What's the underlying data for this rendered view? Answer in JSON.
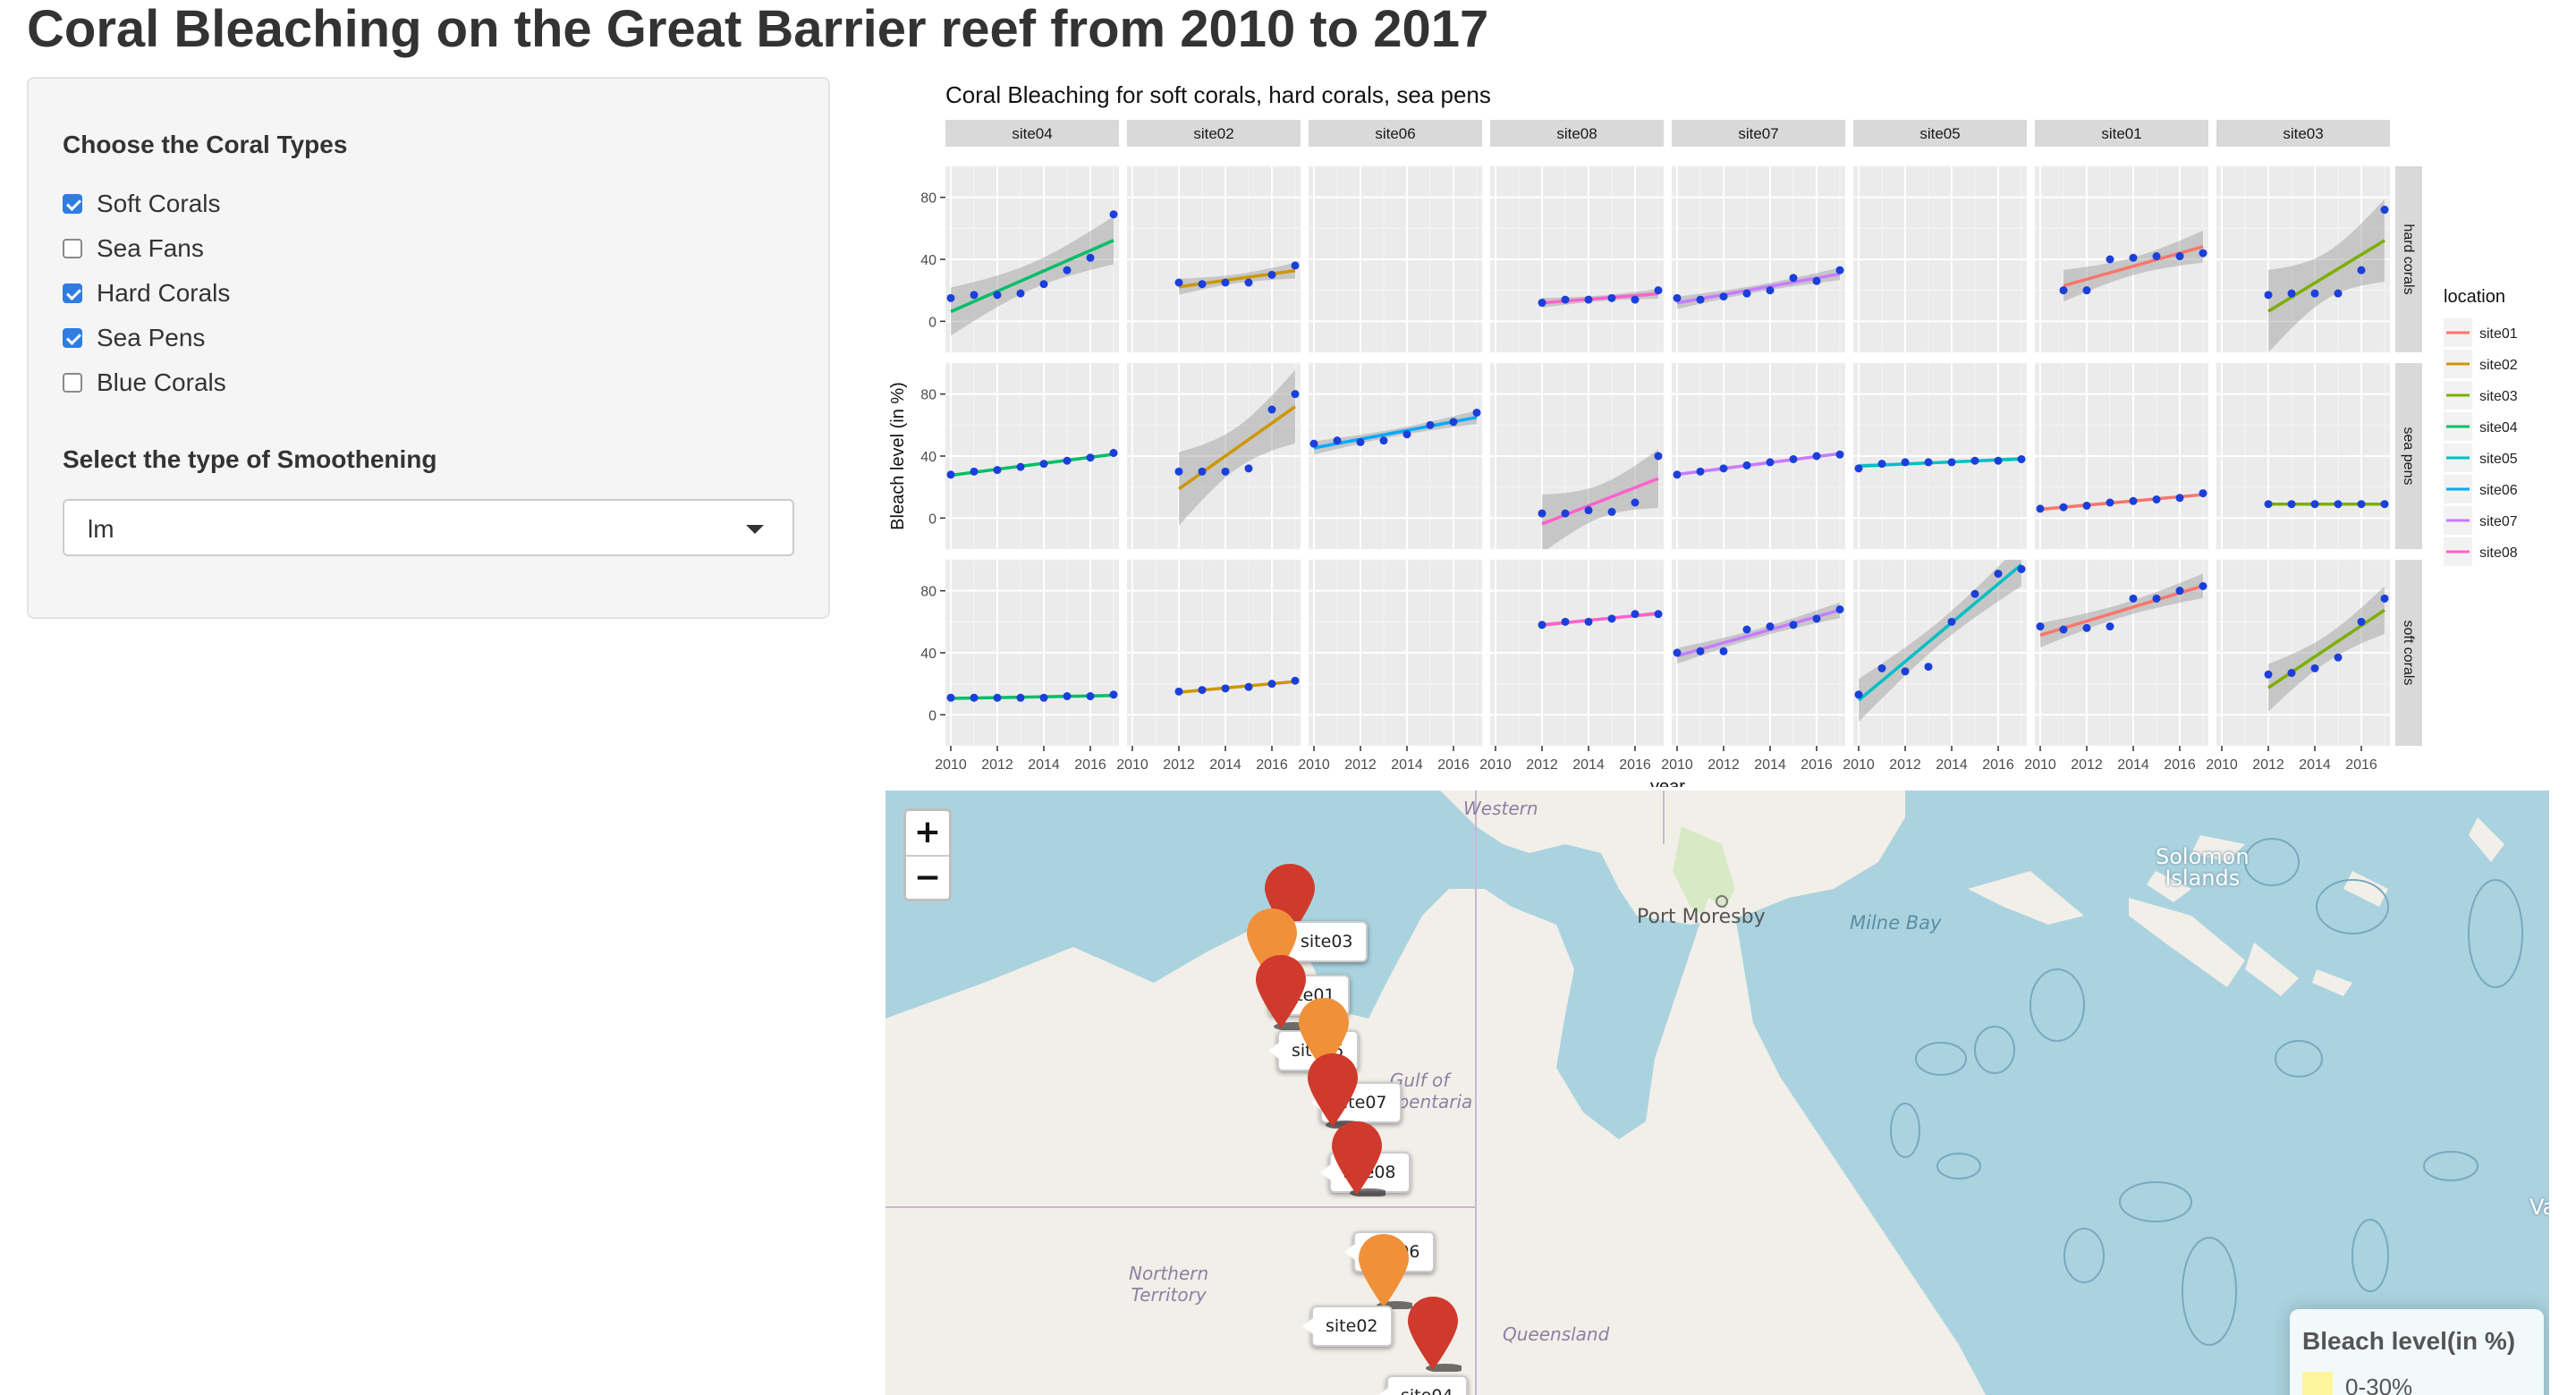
{
  "page": {
    "title": "Coral Bleaching on the Great Barrier reef from 2010 to 2017"
  },
  "sidebar": {
    "coral_types_label": "Choose the Coral Types",
    "checkboxes": [
      {
        "label": "Soft Corals",
        "checked": true
      },
      {
        "label": "Sea Fans",
        "checked": false
      },
      {
        "label": "Hard Corals",
        "checked": true
      },
      {
        "label": "Sea Pens",
        "checked": true
      },
      {
        "label": "Blue Corals",
        "checked": false
      }
    ],
    "smoothening_label": "Select the type of Smoothening",
    "smoothening_value": "lm"
  },
  "chart_data": {
    "type": "scatter",
    "title": "Coral Bleaching for soft corals, hard corals, sea pens",
    "xlabel": "year",
    "ylabel": "Bleach level (in %)",
    "xlim": [
      2010,
      2017
    ],
    "ylim": [
      -20,
      100
    ],
    "x_ticks": [
      "2010",
      "2012",
      "2014",
      "2016"
    ],
    "y_ticks": [
      "0",
      "40",
      "80"
    ],
    "grid": true,
    "legend_position": "right",
    "legend_title": "location",
    "smoothing": "lm",
    "columns": [
      "site04",
      "site02",
      "site06",
      "site08",
      "site07",
      "site05",
      "site01",
      "site03"
    ],
    "rows": [
      "hard corals",
      "sea pens",
      "soft corals"
    ],
    "colors": {
      "site01": "#f8766d",
      "site02": "#cd9600",
      "site03": "#7cae00",
      "site04": "#00be67",
      "site05": "#00bfc4",
      "site06": "#00a9ff",
      "site07": "#c77cff",
      "site08": "#ff61cc"
    },
    "point_color": "#1a3fdb",
    "legend": [
      "site01",
      "site02",
      "site03",
      "site04",
      "site05",
      "site06",
      "site07",
      "site08"
    ],
    "panels": [
      {
        "site": "site04",
        "type": "hard corals",
        "x": [
          2010,
          2011,
          2012,
          2013,
          2014,
          2015,
          2016,
          2017
        ],
        "y": [
          15,
          17,
          17,
          18,
          24,
          33,
          41,
          69
        ]
      },
      {
        "site": "site02",
        "type": "hard corals",
        "x": [
          2012,
          2013,
          2014,
          2015,
          2016,
          2017
        ],
        "y": [
          25,
          24,
          25,
          25,
          30,
          36
        ]
      },
      {
        "site": "site08",
        "type": "hard corals",
        "x": [
          2012,
          2013,
          2014,
          2015,
          2016,
          2017
        ],
        "y": [
          12,
          14,
          14,
          15,
          14,
          20
        ]
      },
      {
        "site": "site07",
        "type": "hard corals",
        "x": [
          2010,
          2011,
          2012,
          2013,
          2014,
          2015,
          2016,
          2017
        ],
        "y": [
          15,
          14,
          16,
          18,
          20,
          28,
          26,
          33
        ]
      },
      {
        "site": "site01",
        "type": "hard corals",
        "x": [
          2011,
          2012,
          2013,
          2014,
          2015,
          2016,
          2017
        ],
        "y": [
          20,
          20,
          40,
          41,
          42,
          42,
          44
        ]
      },
      {
        "site": "site03",
        "type": "hard corals",
        "x": [
          2012,
          2013,
          2014,
          2015,
          2016,
          2017
        ],
        "y": [
          17,
          18,
          18,
          18,
          33,
          72
        ]
      },
      {
        "site": "site04",
        "type": "sea pens",
        "x": [
          2010,
          2011,
          2012,
          2013,
          2014,
          2015,
          2016,
          2017
        ],
        "y": [
          28,
          30,
          31,
          33,
          35,
          37,
          39,
          42
        ]
      },
      {
        "site": "site02",
        "type": "sea pens",
        "x": [
          2012,
          2013,
          2014,
          2015,
          2016,
          2017
        ],
        "y": [
          30,
          30,
          30,
          32,
          70,
          80
        ]
      },
      {
        "site": "site06",
        "type": "sea pens",
        "x": [
          2010,
          2011,
          2012,
          2013,
          2014,
          2015,
          2016,
          2017
        ],
        "y": [
          48,
          50,
          49,
          50,
          54,
          60,
          62,
          68
        ]
      },
      {
        "site": "site08",
        "type": "sea pens",
        "x": [
          2012,
          2013,
          2014,
          2015,
          2016,
          2017
        ],
        "y": [
          3,
          3,
          5,
          4,
          10,
          40
        ]
      },
      {
        "site": "site07",
        "type": "sea pens",
        "x": [
          2010,
          2011,
          2012,
          2013,
          2014,
          2015,
          2016,
          2017
        ],
        "y": [
          28,
          30,
          32,
          34,
          36,
          38,
          40,
          41
        ]
      },
      {
        "site": "site05",
        "type": "sea pens",
        "x": [
          2010,
          2011,
          2012,
          2013,
          2014,
          2015,
          2016,
          2017
        ],
        "y": [
          32,
          35,
          36,
          36,
          36,
          37,
          37,
          38
        ]
      },
      {
        "site": "site01",
        "type": "sea pens",
        "x": [
          2010,
          2011,
          2012,
          2013,
          2014,
          2015,
          2016,
          2017
        ],
        "y": [
          6,
          7,
          8,
          10,
          11,
          12,
          13,
          16
        ]
      },
      {
        "site": "site03",
        "type": "sea pens",
        "x": [
          2012,
          2013,
          2014,
          2015,
          2016,
          2017
        ],
        "y": [
          9,
          9,
          9,
          9,
          9,
          9
        ]
      },
      {
        "site": "site04",
        "type": "soft corals",
        "x": [
          2010,
          2011,
          2012,
          2013,
          2014,
          2015,
          2016,
          2017
        ],
        "y": [
          11,
          11,
          11,
          11,
          11,
          12,
          12,
          13
        ]
      },
      {
        "site": "site02",
        "type": "soft corals",
        "x": [
          2012,
          2013,
          2014,
          2015,
          2016,
          2017
        ],
        "y": [
          15,
          16,
          17,
          18,
          20,
          22
        ]
      },
      {
        "site": "site08",
        "type": "soft corals",
        "x": [
          2012,
          2013,
          2014,
          2015,
          2016,
          2017
        ],
        "y": [
          58,
          60,
          60,
          62,
          65,
          65
        ]
      },
      {
        "site": "site07",
        "type": "soft corals",
        "x": [
          2010,
          2011,
          2012,
          2013,
          2014,
          2015,
          2016,
          2017
        ],
        "y": [
          40,
          41,
          41,
          55,
          57,
          58,
          62,
          68
        ]
      },
      {
        "site": "site05",
        "type": "soft corals",
        "x": [
          2010,
          2011,
          2012,
          2013,
          2014,
          2015,
          2016,
          2017
        ],
        "y": [
          13,
          30,
          28,
          31,
          60,
          78,
          91,
          94
        ]
      },
      {
        "site": "site01",
        "type": "soft corals",
        "x": [
          2010,
          2011,
          2012,
          2013,
          2014,
          2015,
          2016,
          2017
        ],
        "y": [
          57,
          55,
          56,
          57,
          75,
          75,
          80,
          83
        ]
      },
      {
        "site": "site03",
        "type": "soft corals",
        "x": [
          2012,
          2013,
          2014,
          2015,
          2016,
          2017
        ],
        "y": [
          26,
          27,
          30,
          37,
          60,
          75
        ]
      }
    ]
  },
  "map": {
    "zoom_in": "+",
    "zoom_out": "−",
    "labels": {
      "western": "Western",
      "solomon": "Solomon\nIslands",
      "port_moresby": "Port Moresby",
      "milne_bay": "Milne Bay",
      "gulf": "Gulf of\nCarpentaria",
      "nt": "Northern\nTerritory",
      "qld": "Queensland",
      "va": "Va"
    },
    "markers": [
      {
        "name": "site03",
        "level": "high",
        "color": "#d03a2c"
      },
      {
        "name": "site01",
        "level": "medium",
        "color": "#f0913a"
      },
      {
        "name": "site05",
        "level": "high",
        "color": "#d03a2c"
      },
      {
        "name": "site07",
        "level": "medium",
        "color": "#f0913a"
      },
      {
        "name": "site08",
        "level": "high",
        "color": "#d03a2c"
      },
      {
        "name": "site06",
        "level": "high",
        "color": "#d03a2c"
      },
      {
        "name": "site02",
        "level": "medium",
        "color": "#f0913a"
      },
      {
        "name": "site04",
        "level": "high",
        "color": "#d03a2c"
      }
    ],
    "legend": {
      "title": "Bleach level(in %)",
      "rows": [
        {
          "label": "0-30%",
          "color": "#fff59d"
        },
        {
          "label": "",
          "color": "#f5b062"
        }
      ]
    }
  }
}
